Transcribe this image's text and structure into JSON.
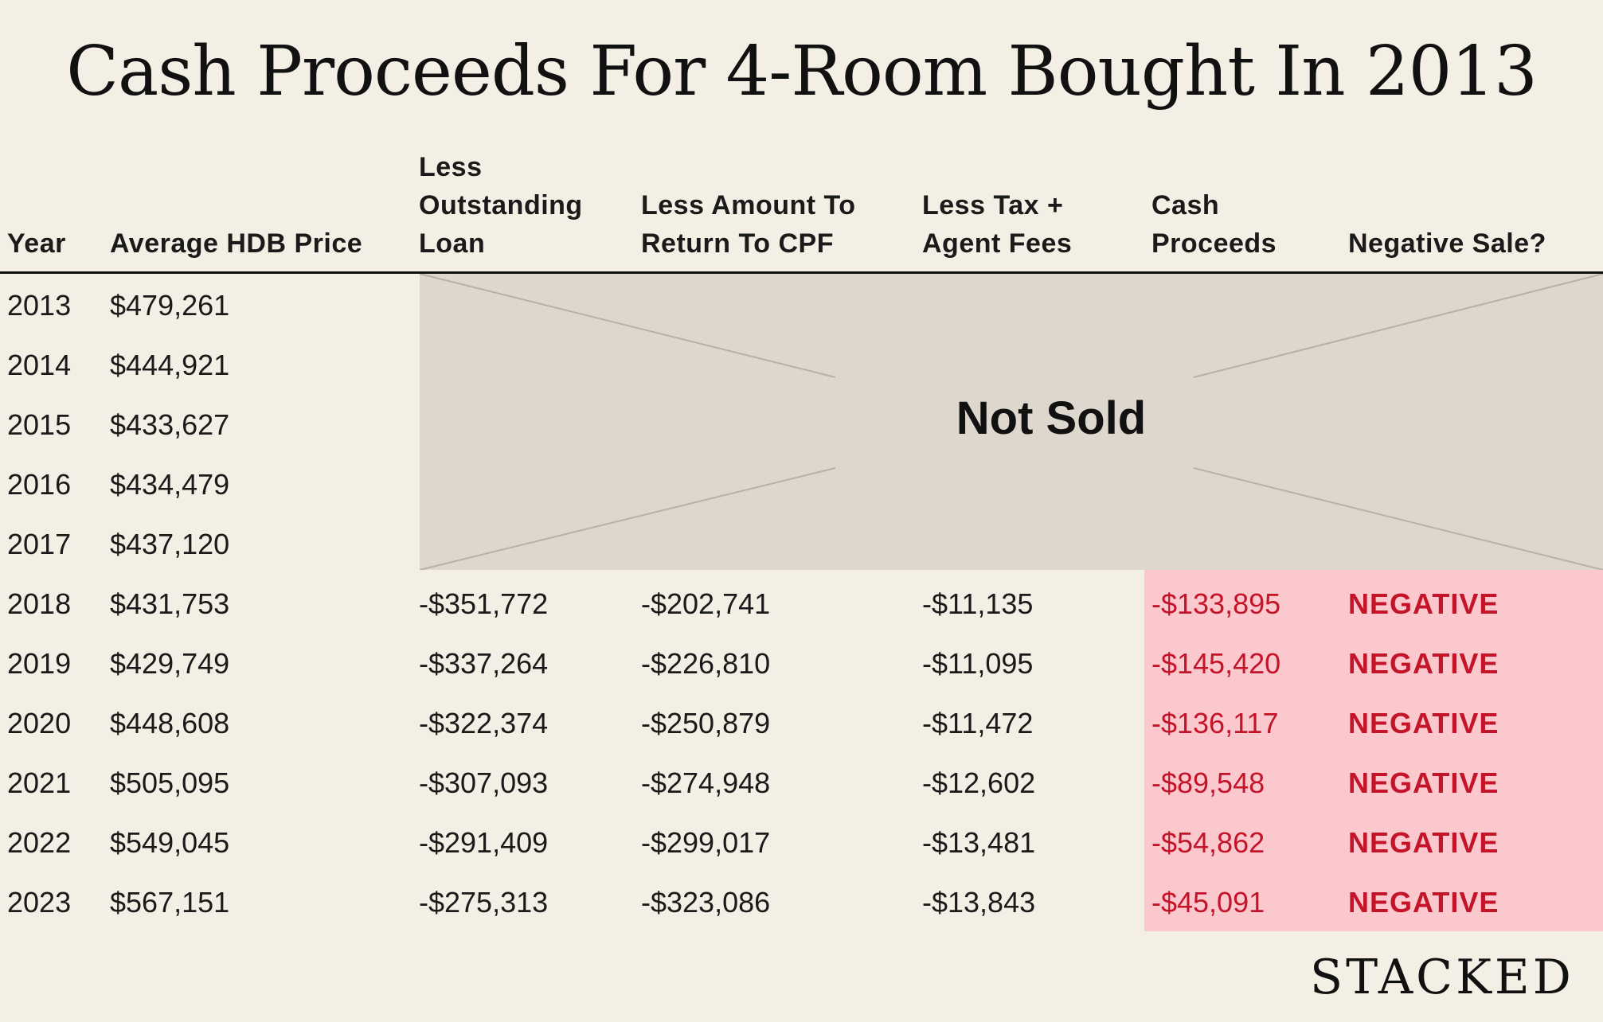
{
  "title": "Cash Proceeds For 4-Room Bought In 2013",
  "headers": {
    "year": [
      "Year"
    ],
    "price": [
      "Average HDB Price"
    ],
    "loan": [
      "Less",
      "Outstanding",
      "Loan"
    ],
    "cpf": [
      "Less Amount To",
      "Return To CPF"
    ],
    "fees": [
      "Less Tax +",
      "Agent Fees"
    ],
    "cash": [
      "Cash",
      "Proceeds"
    ],
    "negative": [
      "Negative Sale?"
    ]
  },
  "not_sold_label": "Not Sold",
  "rows": [
    {
      "year": "2013",
      "price": "$479,261"
    },
    {
      "year": "2014",
      "price": "$444,921"
    },
    {
      "year": "2015",
      "price": "$433,627"
    },
    {
      "year": "2016",
      "price": "$434,479"
    },
    {
      "year": "2017",
      "price": "$437,120"
    },
    {
      "year": "2018",
      "price": "$431,753",
      "loan": "-$351,772",
      "cpf": "-$202,741",
      "fees": "-$11,135",
      "cash": "-$133,895",
      "negative": "NEGATIVE"
    },
    {
      "year": "2019",
      "price": "$429,749",
      "loan": "-$337,264",
      "cpf": "-$226,810",
      "fees": "-$11,095",
      "cash": "-$145,420",
      "negative": "NEGATIVE"
    },
    {
      "year": "2020",
      "price": "$448,608",
      "loan": "-$322,374",
      "cpf": "-$250,879",
      "fees": "-$11,472",
      "cash": "-$136,117",
      "negative": "NEGATIVE"
    },
    {
      "year": "2021",
      "price": "$505,095",
      "loan": "-$307,093",
      "cpf": "-$274,948",
      "fees": "-$12,602",
      "cash": "-$89,548",
      "negative": "NEGATIVE"
    },
    {
      "year": "2022",
      "price": "$549,045",
      "loan": "-$291,409",
      "cpf": "-$299,017",
      "fees": "-$13,481",
      "cash": "-$54,862",
      "negative": "NEGATIVE"
    },
    {
      "year": "2023",
      "price": "$567,151",
      "loan": "-$275,313",
      "cpf": "-$323,086",
      "fees": "-$13,843",
      "cash": "-$45,091",
      "negative": "NEGATIVE"
    }
  ],
  "logo": "STACKED",
  "colors": {
    "background": "#f3efe4",
    "not_sold_fill": "#ddd7ce",
    "negative_fill": "#fbc8cd",
    "negative_text": "#c4142a"
  }
}
